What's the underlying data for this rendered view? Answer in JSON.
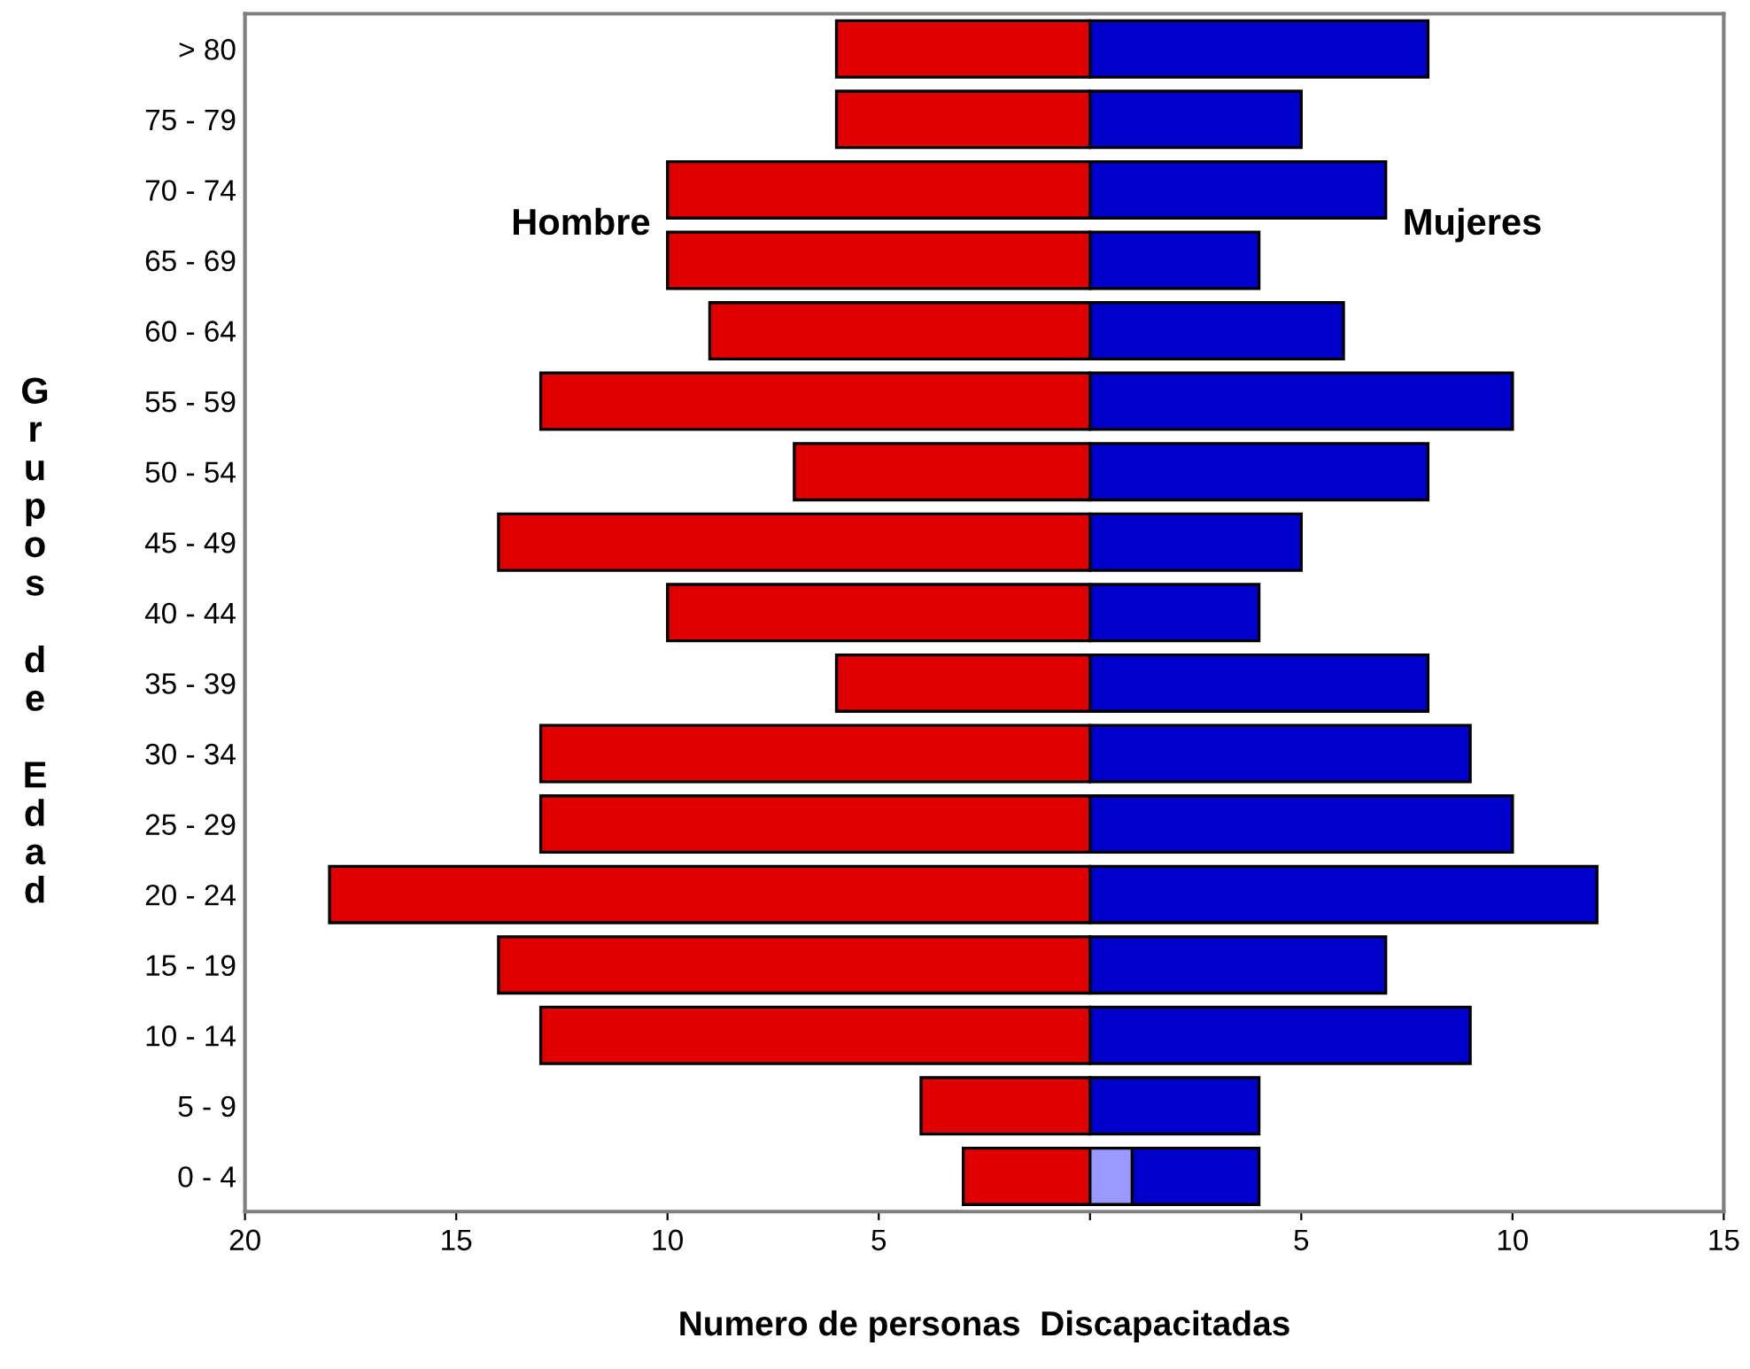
{
  "chart_data": {
    "type": "bar",
    "orientation": "horizontal",
    "stacked": true,
    "categories": [
      "> 80",
      "75 - 79",
      "70 - 74",
      "65 - 69",
      "60 - 64",
      "55 - 59",
      "50 - 54",
      "45 - 49",
      "40 - 44",
      "35 - 39",
      "30 - 34",
      "25 - 29",
      "20 - 24",
      "15 - 19",
      "10 - 14",
      "5 - 9",
      "0 - 4"
    ],
    "series": [
      {
        "name": "Hombre",
        "color": "#e00000",
        "values": [
          -6,
          -6,
          -10,
          -10,
          -9,
          -13,
          -7,
          -14,
          -10,
          -6,
          -13,
          -13,
          -18,
          -14,
          -13,
          -4,
          -3
        ]
      },
      {
        "color": "#9999ff",
        "values": [
          null,
          null,
          null,
          null,
          null,
          null,
          null,
          null,
          null,
          null,
          null,
          null,
          null,
          null,
          null,
          null,
          1
        ]
      },
      {
        "name": "Mujeres",
        "color": "#0000cc",
        "values": [
          8,
          5,
          7,
          4,
          6,
          10,
          8,
          5,
          4,
          8,
          9,
          10,
          12,
          7,
          9,
          4,
          3
        ]
      }
    ],
    "xlabel": "Numero de personas  Discapacitadas",
    "ylabel": "Grupos de Edad",
    "xlim": [
      -20,
      15
    ],
    "xticks": [
      {
        "value": -20,
        "label": "20"
      },
      {
        "value": -15,
        "label": "15"
      },
      {
        "value": -10,
        "label": "10"
      },
      {
        "value": -5,
        "label": "5"
      },
      {
        "value": 0,
        "label": null
      },
      5,
      10,
      15
    ],
    "grid": false,
    "legend": false
  }
}
